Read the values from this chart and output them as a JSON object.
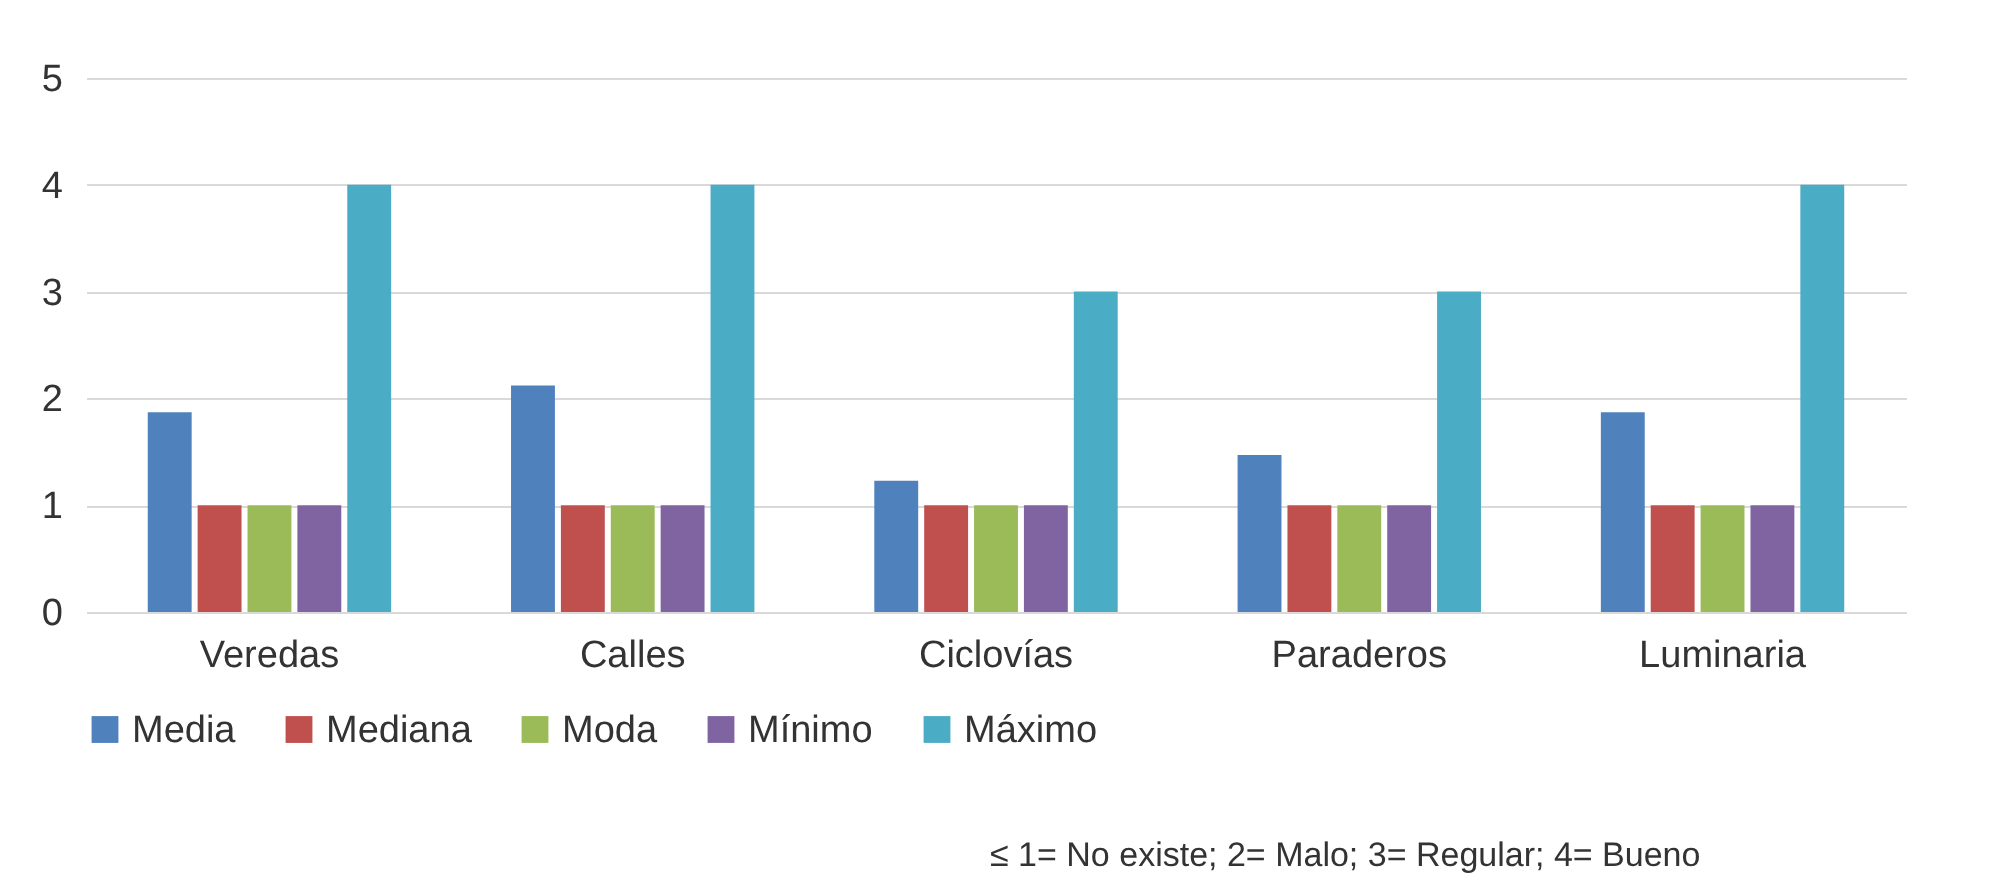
{
  "chart_data": {
    "type": "bar",
    "categories": [
      "Veredas",
      "Calles",
      "Ciclovías",
      "Paraderos",
      "Luminaria"
    ],
    "series": [
      {
        "name": "Media",
        "color": "#4f81bd",
        "values": [
          1.87,
          2.12,
          1.23,
          1.47,
          1.87
        ]
      },
      {
        "name": "Mediana",
        "color": "#c0504d",
        "values": [
          1,
          1,
          1,
          1,
          1
        ]
      },
      {
        "name": "Moda",
        "color": "#9bbb59",
        "values": [
          1,
          1,
          1,
          1,
          1
        ]
      },
      {
        "name": "Mínimo",
        "color": "#8064a2",
        "values": [
          1,
          1,
          1,
          1,
          1
        ]
      },
      {
        "name": "Máximo",
        "color": "#4bacc6",
        "values": [
          4,
          4,
          3,
          3,
          4
        ]
      }
    ],
    "ylim": [
      0,
      5
    ],
    "yticks": [
      0,
      1,
      2,
      3,
      4,
      5
    ],
    "grid": "y",
    "legend": "bottom",
    "annotations": [
      "≤ 1= No existe; 2= Malo; 3= Regular; 4= Bueno"
    ]
  }
}
